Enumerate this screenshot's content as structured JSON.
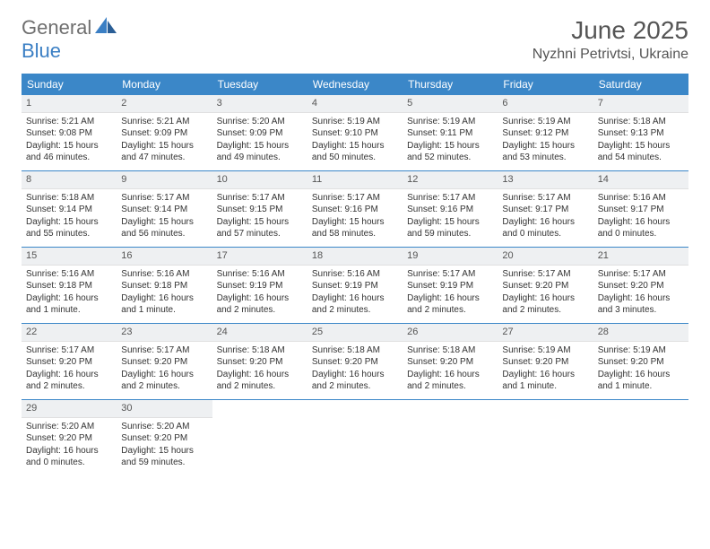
{
  "logo": {
    "text1": "General",
    "text2": "Blue"
  },
  "title": {
    "month": "June 2025",
    "location": "Nyzhni Petrivtsi, Ukraine"
  },
  "colors": {
    "header_bg": "#3b87c8",
    "header_text": "#ffffff",
    "daynum_bg": "#eef0f2",
    "week_border": "#3b87c8",
    "logo_gray": "#6f6f6f",
    "logo_blue": "#3b7fc4"
  },
  "weekdays": [
    "Sunday",
    "Monday",
    "Tuesday",
    "Wednesday",
    "Thursday",
    "Friday",
    "Saturday"
  ],
  "days": [
    {
      "n": "1",
      "sunrise": "5:21 AM",
      "sunset": "9:08 PM",
      "daylight": "15 hours and 46 minutes."
    },
    {
      "n": "2",
      "sunrise": "5:21 AM",
      "sunset": "9:09 PM",
      "daylight": "15 hours and 47 minutes."
    },
    {
      "n": "3",
      "sunrise": "5:20 AM",
      "sunset": "9:09 PM",
      "daylight": "15 hours and 49 minutes."
    },
    {
      "n": "4",
      "sunrise": "5:19 AM",
      "sunset": "9:10 PM",
      "daylight": "15 hours and 50 minutes."
    },
    {
      "n": "5",
      "sunrise": "5:19 AM",
      "sunset": "9:11 PM",
      "daylight": "15 hours and 52 minutes."
    },
    {
      "n": "6",
      "sunrise": "5:19 AM",
      "sunset": "9:12 PM",
      "daylight": "15 hours and 53 minutes."
    },
    {
      "n": "7",
      "sunrise": "5:18 AM",
      "sunset": "9:13 PM",
      "daylight": "15 hours and 54 minutes."
    },
    {
      "n": "8",
      "sunrise": "5:18 AM",
      "sunset": "9:14 PM",
      "daylight": "15 hours and 55 minutes."
    },
    {
      "n": "9",
      "sunrise": "5:17 AM",
      "sunset": "9:14 PM",
      "daylight": "15 hours and 56 minutes."
    },
    {
      "n": "10",
      "sunrise": "5:17 AM",
      "sunset": "9:15 PM",
      "daylight": "15 hours and 57 minutes."
    },
    {
      "n": "11",
      "sunrise": "5:17 AM",
      "sunset": "9:16 PM",
      "daylight": "15 hours and 58 minutes."
    },
    {
      "n": "12",
      "sunrise": "5:17 AM",
      "sunset": "9:16 PM",
      "daylight": "15 hours and 59 minutes."
    },
    {
      "n": "13",
      "sunrise": "5:17 AM",
      "sunset": "9:17 PM",
      "daylight": "16 hours and 0 minutes."
    },
    {
      "n": "14",
      "sunrise": "5:16 AM",
      "sunset": "9:17 PM",
      "daylight": "16 hours and 0 minutes."
    },
    {
      "n": "15",
      "sunrise": "5:16 AM",
      "sunset": "9:18 PM",
      "daylight": "16 hours and 1 minute."
    },
    {
      "n": "16",
      "sunrise": "5:16 AM",
      "sunset": "9:18 PM",
      "daylight": "16 hours and 1 minute."
    },
    {
      "n": "17",
      "sunrise": "5:16 AM",
      "sunset": "9:19 PM",
      "daylight": "16 hours and 2 minutes."
    },
    {
      "n": "18",
      "sunrise": "5:16 AM",
      "sunset": "9:19 PM",
      "daylight": "16 hours and 2 minutes."
    },
    {
      "n": "19",
      "sunrise": "5:17 AM",
      "sunset": "9:19 PM",
      "daylight": "16 hours and 2 minutes."
    },
    {
      "n": "20",
      "sunrise": "5:17 AM",
      "sunset": "9:20 PM",
      "daylight": "16 hours and 2 minutes."
    },
    {
      "n": "21",
      "sunrise": "5:17 AM",
      "sunset": "9:20 PM",
      "daylight": "16 hours and 3 minutes."
    },
    {
      "n": "22",
      "sunrise": "5:17 AM",
      "sunset": "9:20 PM",
      "daylight": "16 hours and 2 minutes."
    },
    {
      "n": "23",
      "sunrise": "5:17 AM",
      "sunset": "9:20 PM",
      "daylight": "16 hours and 2 minutes."
    },
    {
      "n": "24",
      "sunrise": "5:18 AM",
      "sunset": "9:20 PM",
      "daylight": "16 hours and 2 minutes."
    },
    {
      "n": "25",
      "sunrise": "5:18 AM",
      "sunset": "9:20 PM",
      "daylight": "16 hours and 2 minutes."
    },
    {
      "n": "26",
      "sunrise": "5:18 AM",
      "sunset": "9:20 PM",
      "daylight": "16 hours and 2 minutes."
    },
    {
      "n": "27",
      "sunrise": "5:19 AM",
      "sunset": "9:20 PM",
      "daylight": "16 hours and 1 minute."
    },
    {
      "n": "28",
      "sunrise": "5:19 AM",
      "sunset": "9:20 PM",
      "daylight": "16 hours and 1 minute."
    },
    {
      "n": "29",
      "sunrise": "5:20 AM",
      "sunset": "9:20 PM",
      "daylight": "16 hours and 0 minutes."
    },
    {
      "n": "30",
      "sunrise": "5:20 AM",
      "sunset": "9:20 PM",
      "daylight": "15 hours and 59 minutes."
    }
  ],
  "labels": {
    "sunrise": "Sunrise: ",
    "sunset": "Sunset: ",
    "daylight": "Daylight: "
  }
}
